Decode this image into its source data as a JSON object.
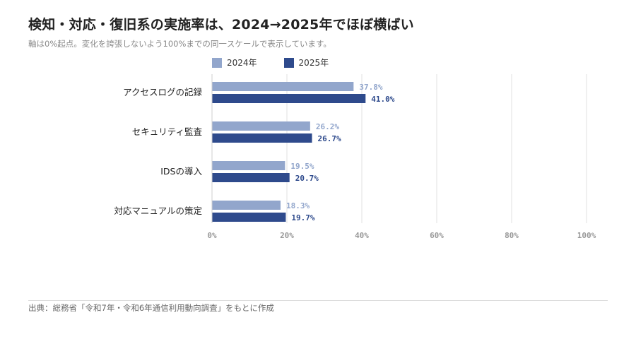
{
  "title": "検知・対応・復旧系の実施率は、2024→2025年でほぼ横ばい",
  "subtitle": "軸は0%起点。変化を誇張しないよう100%までの同一スケールで表示しています。",
  "source": "出典：総務省「令和7年・令和6年通信利用動向調査」をもとに作成",
  "colors": {
    "series_2024": "#92a6cc",
    "series_2025": "#2e4a8c",
    "grid": "#e2e2e2",
    "tick": "#999999"
  },
  "chart_data": {
    "type": "bar",
    "orientation": "horizontal",
    "categories": [
      "アクセスログの記録",
      "セキュリティ監査",
      "IDSの導入",
      "対応マニュアルの策定"
    ],
    "series": [
      {
        "name": "2024年",
        "values": [
          37.8,
          26.2,
          19.5,
          18.3
        ],
        "labels": [
          "37.8%",
          "26.2%",
          "19.5%",
          "18.3%"
        ]
      },
      {
        "name": "2025年",
        "values": [
          41.0,
          26.7,
          20.7,
          19.7
        ],
        "labels": [
          "41.0%",
          "26.7%",
          "20.7%",
          "19.7%"
        ]
      }
    ],
    "xlim": [
      0,
      100
    ],
    "xticks": [
      0,
      20,
      40,
      60,
      80,
      100
    ],
    "xtick_labels": [
      "0%",
      "20%",
      "40%",
      "60%",
      "80%",
      "100%"
    ],
    "grid": true,
    "legend": "top"
  }
}
